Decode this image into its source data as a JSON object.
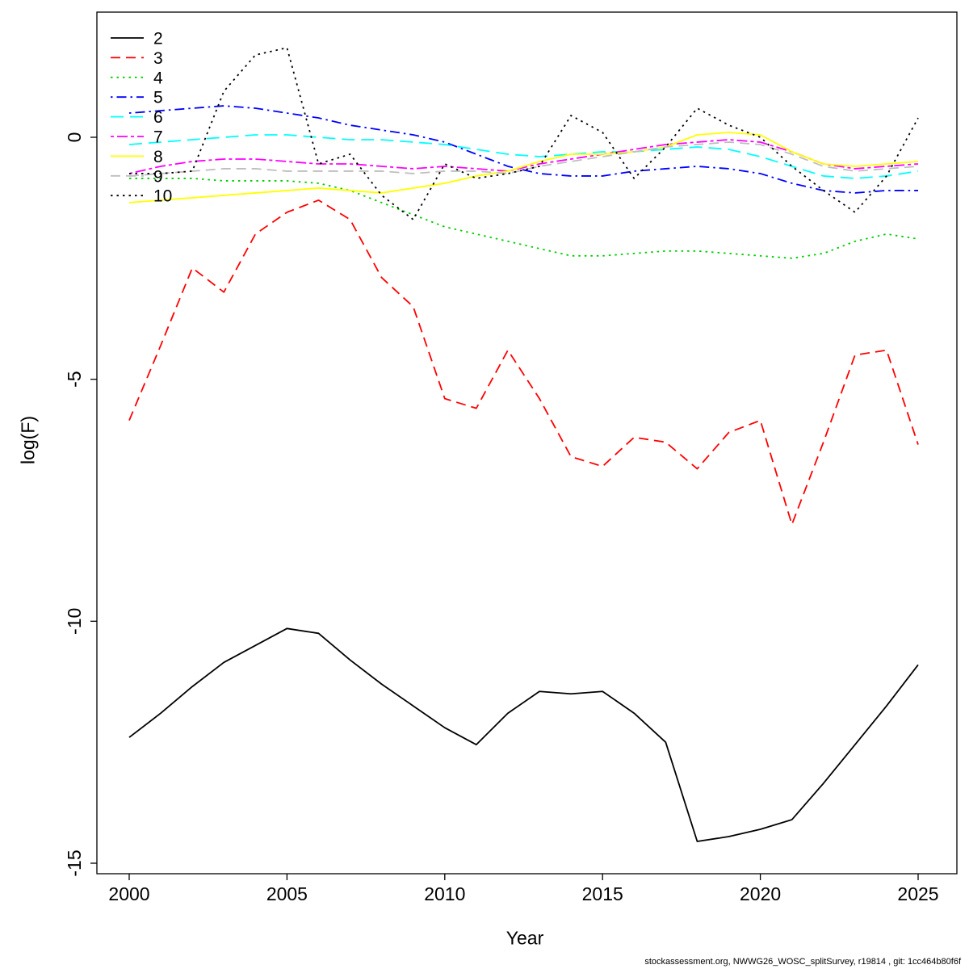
{
  "figure": {
    "background": "#ffffff",
    "footer_text": "stockassessment.org, NWWG26_WOSC_splitSurvey, r19814 , git: 1cc464b80f6f"
  },
  "chart_data": {
    "type": "line",
    "title": "",
    "xlabel": "Year",
    "ylabel": "log(F)",
    "xlim": [
      2000,
      2025
    ],
    "ylim": [
      -15.2,
      2.6
    ],
    "xticks": [
      2000,
      2005,
      2010,
      2015,
      2020,
      2025
    ],
    "yticks": [
      0,
      -5,
      -10,
      -15
    ],
    "grid": false,
    "legend_position": "top-left-inside",
    "x": [
      2000,
      2001,
      2002,
      2003,
      2004,
      2005,
      2006,
      2007,
      2008,
      2009,
      2010,
      2011,
      2012,
      2013,
      2014,
      2015,
      2016,
      2017,
      2018,
      2019,
      2020,
      2021,
      2022,
      2023,
      2024,
      2025
    ],
    "series": [
      {
        "name": "2",
        "color": "#000000",
        "linestyle": "solid",
        "values": [
          -12.4,
          -11.9,
          -11.35,
          -10.85,
          -10.5,
          -10.15,
          -10.25,
          -10.8,
          -11.3,
          -11.75,
          -12.2,
          -12.55,
          -11.9,
          -11.45,
          -11.5,
          -11.45,
          -11.9,
          -12.5,
          -14.55,
          -14.45,
          -14.3,
          -14.1,
          -13.35,
          -12.55,
          -11.75,
          -10.9
        ]
      },
      {
        "name": "3",
        "color": "#ff0000",
        "linestyle": "dashed",
        "values": [
          -5.85,
          -4.3,
          -2.7,
          -3.2,
          -2.0,
          -1.55,
          -1.3,
          -1.7,
          -2.9,
          -3.5,
          -5.4,
          -5.6,
          -4.4,
          -5.4,
          -6.6,
          -6.8,
          -6.2,
          -6.3,
          -6.85,
          -6.1,
          -5.85,
          -8.0,
          -6.3,
          -4.5,
          -4.4,
          -6.35
        ]
      },
      {
        "name": "4",
        "color": "#00cd00",
        "linestyle": "dotted",
        "values": [
          -0.85,
          -0.85,
          -0.85,
          -0.9,
          -0.9,
          -0.9,
          -0.95,
          -1.1,
          -1.35,
          -1.6,
          -1.85,
          -2.0,
          -2.15,
          -2.3,
          -2.45,
          -2.45,
          -2.4,
          -2.35,
          -2.35,
          -2.4,
          -2.45,
          -2.5,
          -2.4,
          -2.15,
          -2.0,
          -2.1
        ]
      },
      {
        "name": "5",
        "color": "#0000ff",
        "linestyle": "dotdash",
        "values": [
          0.5,
          0.55,
          0.6,
          0.65,
          0.6,
          0.5,
          0.4,
          0.25,
          0.15,
          0.05,
          -0.1,
          -0.35,
          -0.6,
          -0.75,
          -0.8,
          -0.8,
          -0.7,
          -0.65,
          -0.6,
          -0.65,
          -0.75,
          -0.95,
          -1.1,
          -1.15,
          -1.1,
          -1.1
        ]
      },
      {
        "name": "6",
        "color": "#00ffff",
        "linestyle": "longdash",
        "values": [
          -0.15,
          -0.1,
          -0.05,
          0.0,
          0.05,
          0.05,
          0.0,
          -0.05,
          -0.05,
          -0.1,
          -0.15,
          -0.25,
          -0.35,
          -0.4,
          -0.35,
          -0.3,
          -0.3,
          -0.25,
          -0.2,
          -0.25,
          -0.4,
          -0.6,
          -0.8,
          -0.85,
          -0.8,
          -0.7
        ]
      },
      {
        "name": "7",
        "color": "#ff00ff",
        "linestyle": "twodash",
        "values": [
          -0.75,
          -0.6,
          -0.5,
          -0.45,
          -0.45,
          -0.5,
          -0.55,
          -0.55,
          -0.6,
          -0.65,
          -0.6,
          -0.65,
          -0.7,
          -0.55,
          -0.45,
          -0.35,
          -0.25,
          -0.15,
          -0.1,
          -0.05,
          -0.1,
          -0.3,
          -0.55,
          -0.65,
          -0.6,
          -0.55
        ]
      },
      {
        "name": "8",
        "color": "#ffff00",
        "linestyle": "solid",
        "values": [
          -1.35,
          -1.3,
          -1.25,
          -1.2,
          -1.15,
          -1.1,
          -1.05,
          -1.1,
          -1.15,
          -1.05,
          -0.95,
          -0.8,
          -0.7,
          -0.5,
          -0.35,
          -0.35,
          -0.3,
          -0.2,
          0.05,
          0.1,
          0.05,
          -0.3,
          -0.55,
          -0.6,
          -0.55,
          -0.5
        ]
      },
      {
        "name": "9",
        "color": "#bebebe",
        "linestyle": "dashed",
        "values": [
          -0.8,
          -0.75,
          -0.7,
          -0.65,
          -0.65,
          -0.7,
          -0.7,
          -0.7,
          -0.7,
          -0.75,
          -0.7,
          -0.7,
          -0.75,
          -0.6,
          -0.5,
          -0.4,
          -0.3,
          -0.2,
          -0.15,
          -0.1,
          -0.15,
          -0.35,
          -0.6,
          -0.7,
          -0.65,
          -0.6
        ]
      },
      {
        "name": "10",
        "color": "#000000",
        "linestyle": "dotted",
        "values": [
          -0.75,
          -0.75,
          -0.7,
          0.95,
          1.7,
          1.85,
          -0.55,
          -0.35,
          -1.2,
          -1.7,
          -0.55,
          -0.85,
          -0.75,
          -0.6,
          0.45,
          0.1,
          -0.85,
          -0.2,
          0.6,
          0.25,
          0.0,
          -0.6,
          -1.1,
          -1.55,
          -0.8,
          0.4
        ]
      }
    ]
  }
}
